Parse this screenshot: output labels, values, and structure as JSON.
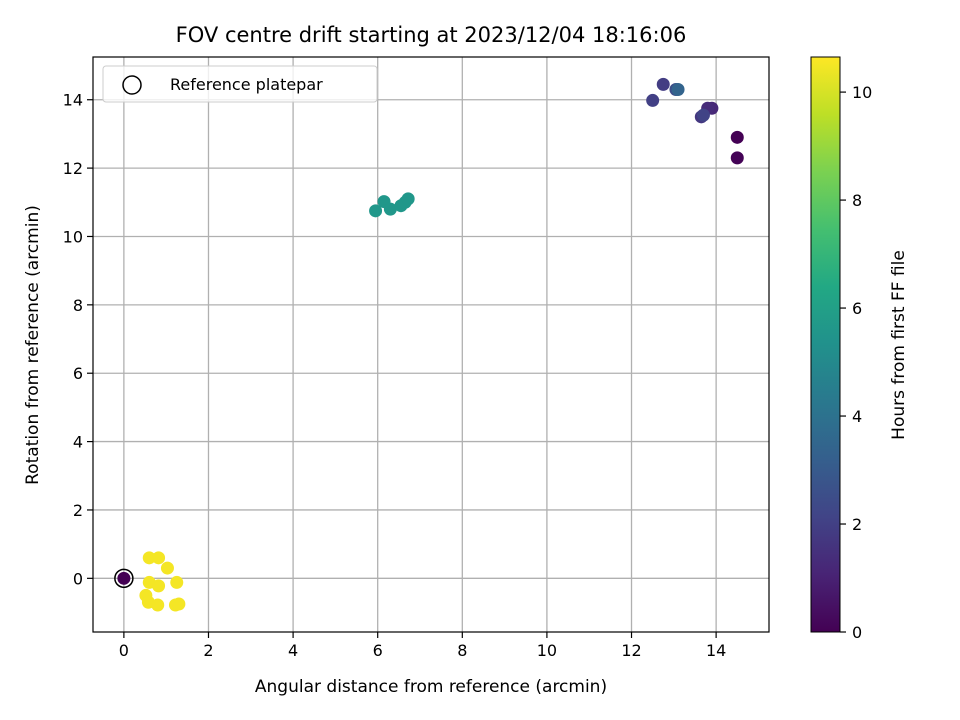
{
  "chart_data": {
    "type": "scatter",
    "title": "FOV centre drift starting at 2023/12/04 18:16:06",
    "xlabel": "Angular distance from reference (arcmin)",
    "ylabel": "Rotation from reference (arcmin)",
    "xlim": [
      -0.73,
      15.25
    ],
    "ylim": [
      -1.57,
      15.25
    ],
    "xticks": [
      0,
      2,
      4,
      6,
      8,
      10,
      12,
      14
    ],
    "yticks": [
      0,
      2,
      4,
      6,
      8,
      10,
      12,
      14
    ],
    "grid": true,
    "legend": {
      "position": "top-left",
      "entries": [
        "Reference platepar"
      ]
    },
    "colorbar": {
      "label": "Hours from first FF file",
      "range": [
        0,
        10.65
      ],
      "ticks": [
        0,
        2,
        4,
        6,
        8,
        10
      ],
      "colormap": "viridis"
    },
    "reference": {
      "x": 0,
      "y": 0,
      "label": "Reference platepar"
    },
    "points": [
      {
        "x": 0.0,
        "y": 0.0,
        "hours": 0.0
      },
      {
        "x": 14.5,
        "y": 12.9,
        "hours": 0.0
      },
      {
        "x": 14.5,
        "y": 12.3,
        "hours": 0.05
      },
      {
        "x": 13.9,
        "y": 13.75,
        "hours": 1.2
      },
      {
        "x": 13.8,
        "y": 13.75,
        "hours": 1.3
      },
      {
        "x": 13.65,
        "y": 13.5,
        "hours": 1.7
      },
      {
        "x": 12.75,
        "y": 14.45,
        "hours": 1.9
      },
      {
        "x": 12.5,
        "y": 13.98,
        "hours": 2.0
      },
      {
        "x": 13.7,
        "y": 13.55,
        "hours": 2.1
      },
      {
        "x": 13.05,
        "y": 14.3,
        "hours": 2.5
      },
      {
        "x": 13.1,
        "y": 14.3,
        "hours": 3.4
      },
      {
        "x": 5.95,
        "y": 10.75,
        "hours": 5.6
      },
      {
        "x": 6.15,
        "y": 11.02,
        "hours": 5.6
      },
      {
        "x": 6.3,
        "y": 10.8,
        "hours": 5.6
      },
      {
        "x": 6.55,
        "y": 10.9,
        "hours": 5.6
      },
      {
        "x": 6.65,
        "y": 11.0,
        "hours": 5.6
      },
      {
        "x": 6.72,
        "y": 11.1,
        "hours": 5.6
      },
      {
        "x": 0.6,
        "y": 0.6,
        "hours": 10.5
      },
      {
        "x": 0.82,
        "y": 0.6,
        "hours": 10.5
      },
      {
        "x": 1.03,
        "y": 0.3,
        "hours": 10.5
      },
      {
        "x": 0.6,
        "y": -0.12,
        "hours": 10.5
      },
      {
        "x": 0.82,
        "y": -0.22,
        "hours": 10.5
      },
      {
        "x": 1.25,
        "y": -0.12,
        "hours": 10.5
      },
      {
        "x": 0.52,
        "y": -0.5,
        "hours": 10.5
      },
      {
        "x": 0.58,
        "y": -0.7,
        "hours": 10.5
      },
      {
        "x": 0.8,
        "y": -0.78,
        "hours": 10.5
      },
      {
        "x": 1.22,
        "y": -0.78,
        "hours": 10.5
      },
      {
        "x": 1.3,
        "y": -0.75,
        "hours": 10.5
      }
    ]
  }
}
